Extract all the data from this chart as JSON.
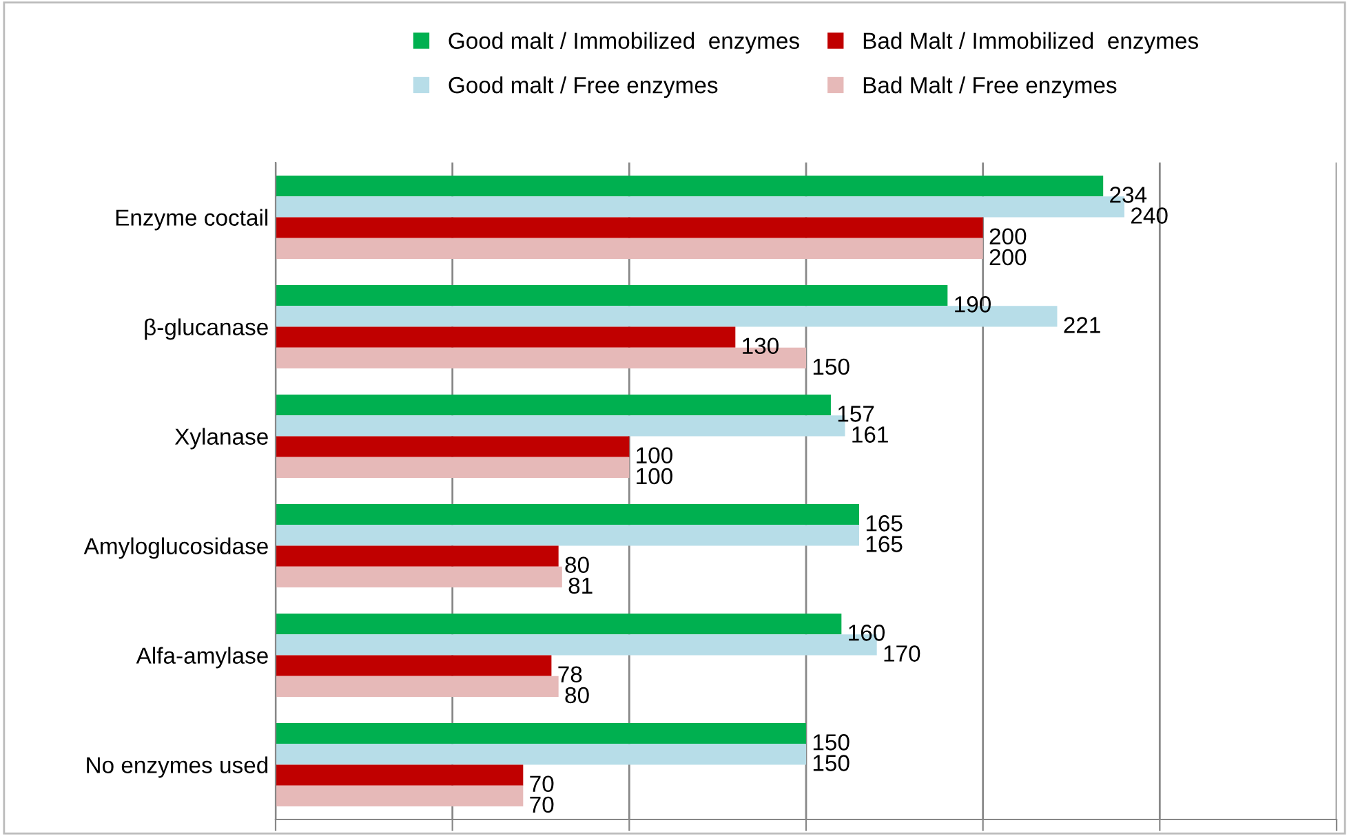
{
  "chart_data": {
    "type": "bar",
    "orientation": "horizontal",
    "categories": [
      "Enzyme coctail",
      "β-glucanase",
      "Xylanase",
      "Amyloglucosidase",
      "Alfa-amylase",
      "No enzymes used"
    ],
    "series": [
      {
        "name": "Good malt / Immobilized  enzymes",
        "color": "#00b050",
        "values": [
          234,
          190,
          157,
          165,
          160,
          150
        ]
      },
      {
        "name": "Good malt / Free enzymes",
        "color": "#b7dde8",
        "values": [
          240,
          221,
          161,
          165,
          170,
          150
        ]
      },
      {
        "name": "Bad Malt / Immobilized  enzymes",
        "color": "#c00000",
        "values": [
          200,
          130,
          100,
          80,
          78,
          70
        ]
      },
      {
        "name": "Bad Malt / Free enzymes",
        "color": "#e6b9b8",
        "values": [
          200,
          150,
          100,
          81,
          80,
          70
        ]
      }
    ],
    "xlim": [
      0,
      300
    ],
    "xticks": [
      {
        "value": 0,
        "label": null
      },
      {
        "value": 50,
        "label": null
      },
      {
        "value": 100,
        "label": null
      },
      {
        "value": 150,
        "label": null
      },
      {
        "value": 200,
        "label": null
      },
      {
        "value": 250,
        "label": null
      },
      {
        "value": 300,
        "label": null
      }
    ],
    "tick_labels": "y",
    "grid": "x",
    "legend": "top",
    "data_labels": true
  }
}
